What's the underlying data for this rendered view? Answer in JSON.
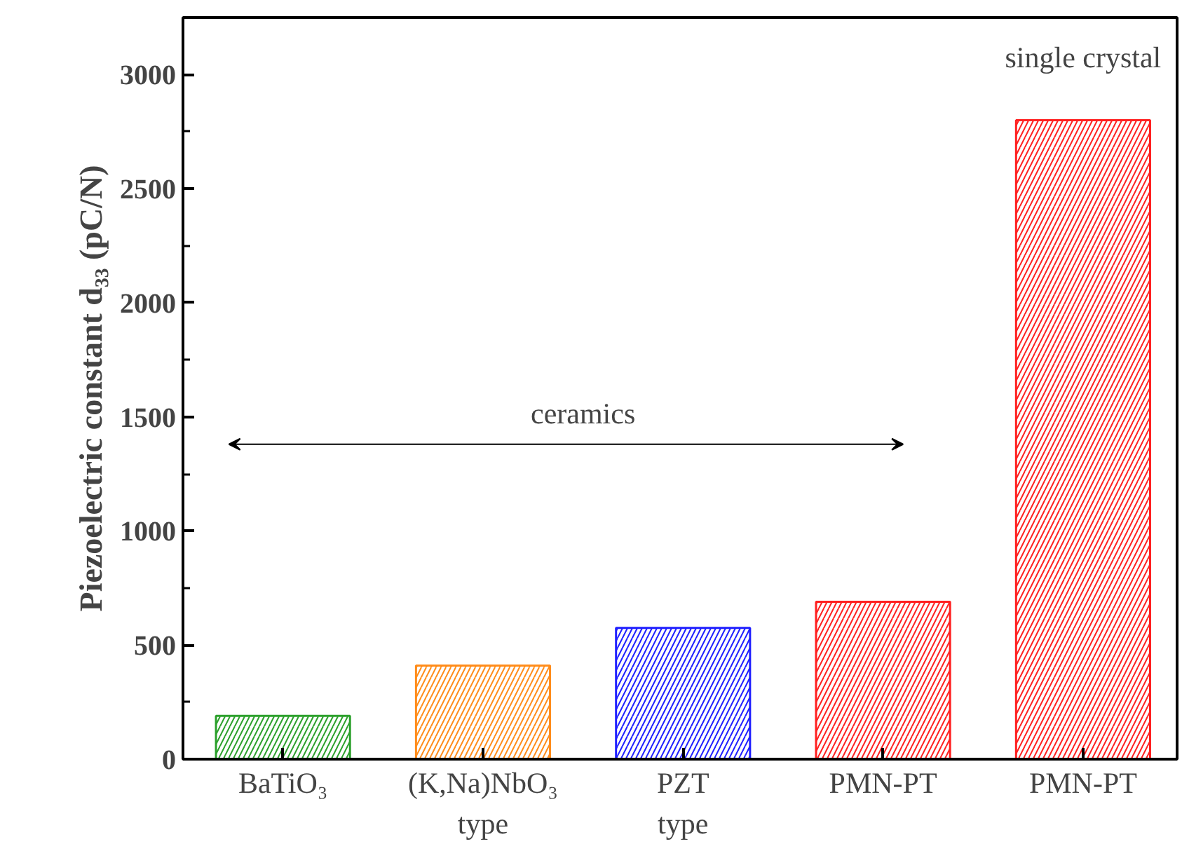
{
  "chart_data": {
    "type": "bar",
    "ylabel": "Piezoelectric constant d₃₃ (pC/N)",
    "categories": [
      "BaTiO₃",
      "(K,Na)NbO₃\ntype",
      "PZT\ntype",
      "PMN-PT",
      "PMN-PT"
    ],
    "values": [
      190,
      410,
      575,
      690,
      2800
    ],
    "colors": [
      "#2ca02c",
      "#ff8c1a",
      "#1f1fff",
      "#ff2020",
      "#ff2020"
    ],
    "ylim": [
      0,
      3250
    ],
    "yticks": [
      0,
      500,
      1000,
      1500,
      2000,
      2500,
      3000
    ],
    "annotations": [
      "ceramics",
      "single crystal"
    ]
  }
}
